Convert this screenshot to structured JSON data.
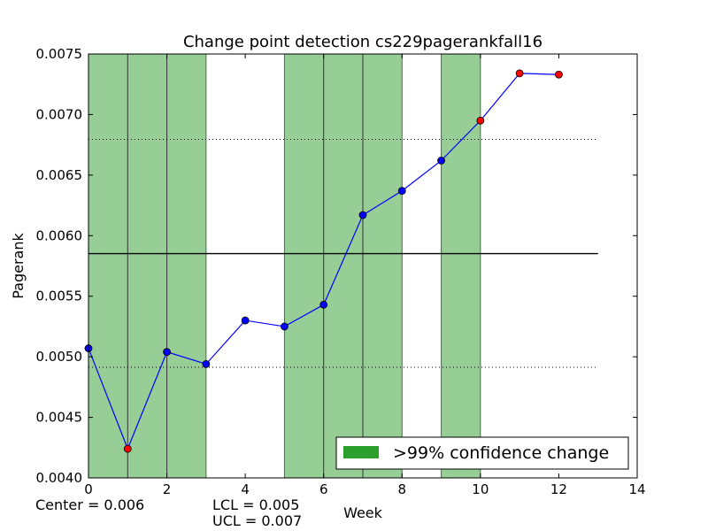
{
  "chart_data": {
    "type": "line",
    "title": "Change point detection cs229pagerankfall16",
    "xlabel": "Week",
    "ylabel": "Pagerank",
    "xlim": [
      0,
      14
    ],
    "ylim": [
      0.004,
      0.0075
    ],
    "xticks": [
      "0",
      "2",
      "4",
      "6",
      "8",
      "10",
      "12",
      "14"
    ],
    "yticks": [
      "0.0040",
      "0.0045",
      "0.0050",
      "0.0055",
      "0.0060",
      "0.0065",
      "0.0070",
      "0.0075"
    ],
    "grid": false,
    "series": [
      {
        "x": [
          0,
          1,
          2,
          3,
          4,
          5,
          6,
          7,
          8,
          9,
          10,
          11,
          12
        ],
        "values": [
          0.00507,
          0.00424,
          0.00504,
          0.00494,
          0.0053,
          0.00525,
          0.00543,
          0.00617,
          0.00637,
          0.00662,
          0.00695,
          0.00734,
          0.00733
        ],
        "color": "#0000ff",
        "marker_colors": [
          "#0000ff",
          "#ff0000",
          "#0000ff",
          "#0000ff",
          "#0000ff",
          "#0000ff",
          "#0000ff",
          "#0000ff",
          "#0000ff",
          "#0000ff",
          "#ff0000",
          "#ff0000",
          "#ff0000"
        ]
      }
    ],
    "center_line": 0.005852,
    "lcl_line": 0.004913,
    "ucl_line": 0.006795,
    "reference_lines_extent_x": [
      0,
      13
    ],
    "change_regions": [
      [
        0,
        3
      ],
      [
        5,
        8
      ],
      [
        9,
        10
      ]
    ],
    "change_lines_x": [
      1,
      2,
      6,
      7
    ],
    "region_color": "#96ce96",
    "legend": {
      "position": "lower-right",
      "entries": [
        {
          "label": ">99% confidence change",
          "color": "#2ca02c"
        }
      ]
    },
    "annotations": {
      "center": "Center = 0.006",
      "lcl": "LCL = 0.005",
      "ucl": "UCL = 0.007"
    }
  }
}
